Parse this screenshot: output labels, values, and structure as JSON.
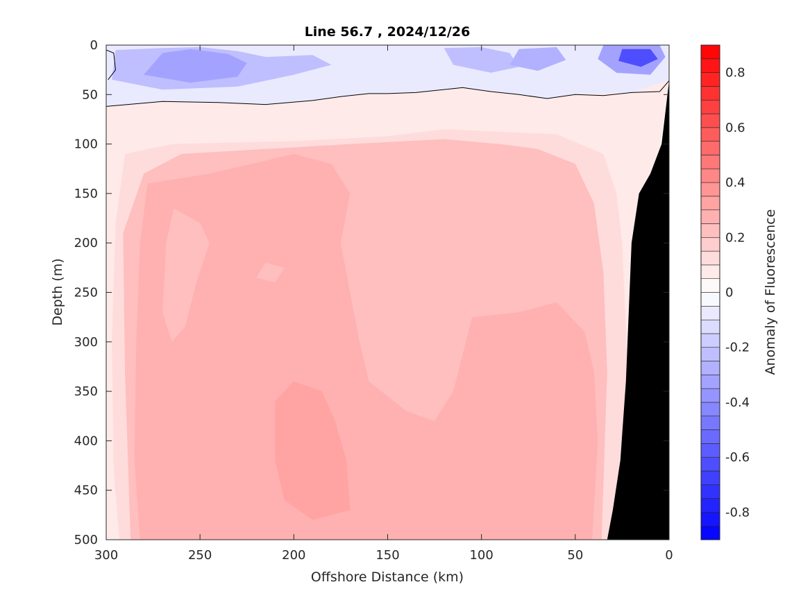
{
  "chart_data": {
    "type": "heatmap",
    "title": "Line 56.7 , 2024/12/26",
    "xlabel": "Offshore Distance (km)",
    "ylabel": "Depth (m)",
    "colorbar_label": "Anomaly of Fluorescence",
    "xlim": [
      300,
      0
    ],
    "ylim": [
      0,
      500
    ],
    "x_reversed": true,
    "y_reversed": true,
    "x_ticks": [
      300,
      250,
      200,
      150,
      100,
      50,
      0
    ],
    "y_ticks": [
      0,
      50,
      100,
      150,
      200,
      250,
      300,
      350,
      400,
      450,
      500
    ],
    "clim": [
      -0.9,
      0.9
    ],
    "colorbar_ticks": [
      0.8,
      0.6,
      0.4,
      0.2,
      0,
      -0.2,
      -0.4,
      -0.6,
      -0.8
    ],
    "colorbar_tick_labels": [
      "0.8",
      "0.6",
      "0.4",
      "0.2",
      "0",
      "-0.2",
      "-0.4",
      "-0.6",
      "-0.8"
    ],
    "colorbar_levels": 36,
    "colormap": {
      "negative": "#0000ff",
      "zero": "#ffffff",
      "positive": "#ff0000"
    },
    "zero_contour": [
      [
        300,
        62
      ],
      [
        270,
        57
      ],
      [
        240,
        58
      ],
      [
        215,
        60
      ],
      [
        190,
        56
      ],
      [
        175,
        52
      ],
      [
        160,
        49
      ],
      [
        150,
        49
      ],
      [
        135,
        48
      ],
      [
        110,
        43
      ],
      [
        95,
        47
      ],
      [
        80,
        50
      ],
      [
        65,
        54
      ],
      [
        50,
        50
      ],
      [
        35,
        51
      ],
      [
        20,
        48
      ],
      [
        5,
        47
      ],
      [
        0,
        36
      ]
    ],
    "bathymetry": [
      [
        33,
        500
      ],
      [
        30,
        470
      ],
      [
        26,
        420
      ],
      [
        23,
        340
      ],
      [
        20,
        200
      ],
      [
        16,
        150
      ],
      [
        10,
        130
      ],
      [
        4,
        100
      ],
      [
        0,
        36
      ]
    ],
    "bathymetry_color": "#000000",
    "regions": [
      {
        "value": 0.06,
        "polygon": [
          [
            300,
            62
          ],
          [
            270,
            57
          ],
          [
            240,
            58
          ],
          [
            215,
            60
          ],
          [
            190,
            56
          ],
          [
            160,
            49
          ],
          [
            135,
            48
          ],
          [
            110,
            43
          ],
          [
            80,
            50
          ],
          [
            65,
            54
          ],
          [
            50,
            50
          ],
          [
            20,
            48
          ],
          [
            0,
            36
          ],
          [
            33,
            500
          ],
          [
            300,
            500
          ]
        ]
      },
      {
        "value": 0.13,
        "polygon": [
          [
            293,
            500
          ],
          [
            296,
            430
          ],
          [
            297,
            300
          ],
          [
            295,
            180
          ],
          [
            290,
            110
          ],
          [
            265,
            100
          ],
          [
            200,
            97
          ],
          [
            150,
            92
          ],
          [
            120,
            85
          ],
          [
            85,
            88
          ],
          [
            60,
            90
          ],
          [
            35,
            110
          ],
          [
            28,
            150
          ],
          [
            25,
            200
          ],
          [
            22,
            330
          ],
          [
            30,
            500
          ]
        ]
      },
      {
        "value": 0.2,
        "polygon": [
          [
            287,
            500
          ],
          [
            290,
            330
          ],
          [
            291,
            190
          ],
          [
            280,
            130
          ],
          [
            260,
            110
          ],
          [
            215,
            105
          ],
          [
            170,
            100
          ],
          [
            120,
            95
          ],
          [
            90,
            100
          ],
          [
            70,
            105
          ],
          [
            50,
            120
          ],
          [
            40,
            160
          ],
          [
            35,
            230
          ],
          [
            33,
            330
          ],
          [
            36,
            500
          ]
        ]
      },
      {
        "value": 0.26,
        "polygon": [
          [
            282,
            500
          ],
          [
            285,
            420
          ],
          [
            284,
            300
          ],
          [
            282,
            200
          ],
          [
            278,
            140
          ],
          [
            245,
            130
          ],
          [
            200,
            110
          ],
          [
            180,
            120
          ],
          [
            170,
            150
          ],
          [
            175,
            200
          ],
          [
            170,
            250
          ],
          [
            165,
            300
          ],
          [
            160,
            340
          ],
          [
            140,
            370
          ],
          [
            125,
            380
          ],
          [
            115,
            350
          ],
          [
            105,
            275
          ],
          [
            80,
            270
          ],
          [
            60,
            260
          ],
          [
            45,
            290
          ],
          [
            40,
            330
          ],
          [
            38,
            400
          ],
          [
            41,
            500
          ]
        ]
      },
      {
        "value": 0.2,
        "polygon": [
          [
            270,
            270
          ],
          [
            265,
            300
          ],
          [
            258,
            285
          ],
          [
            252,
            240
          ],
          [
            245,
            200
          ],
          [
            250,
            180
          ],
          [
            264,
            165
          ],
          [
            268,
            200
          ]
        ]
      },
      {
        "value": 0.2,
        "polygon": [
          [
            215,
            220
          ],
          [
            205,
            225
          ],
          [
            210,
            240
          ],
          [
            220,
            235
          ]
        ]
      },
      {
        "value": 0.32,
        "polygon": [
          [
            200,
            340
          ],
          [
            210,
            360
          ],
          [
            210,
            420
          ],
          [
            205,
            460
          ],
          [
            190,
            480
          ],
          [
            170,
            470
          ],
          [
            172,
            420
          ],
          [
            178,
            380
          ],
          [
            185,
            350
          ]
        ]
      },
      {
        "value": -0.08,
        "polygon": [
          [
            300,
            0
          ],
          [
            0,
            0
          ],
          [
            0,
            36
          ],
          [
            20,
            48
          ],
          [
            50,
            50
          ],
          [
            65,
            54
          ],
          [
            80,
            50
          ],
          [
            110,
            43
          ],
          [
            135,
            48
          ],
          [
            160,
            49
          ],
          [
            190,
            56
          ],
          [
            215,
            60
          ],
          [
            240,
            58
          ],
          [
            270,
            57
          ],
          [
            300,
            62
          ]
        ]
      },
      {
        "value": -0.2,
        "polygon": [
          [
            295,
            5
          ],
          [
            270,
            3
          ],
          [
            250,
            2
          ],
          [
            230,
            6
          ],
          [
            215,
            12
          ],
          [
            190,
            10
          ],
          [
            180,
            20
          ],
          [
            200,
            30
          ],
          [
            230,
            42
          ],
          [
            270,
            45
          ],
          [
            297,
            35
          ]
        ]
      },
      {
        "value": -0.35,
        "polygon": [
          [
            270,
            8
          ],
          [
            255,
            4
          ],
          [
            235,
            9
          ],
          [
            225,
            18
          ],
          [
            230,
            32
          ],
          [
            255,
            38
          ],
          [
            280,
            30
          ]
        ]
      },
      {
        "value": -0.25,
        "polygon": [
          [
            120,
            3
          ],
          [
            100,
            2
          ],
          [
            85,
            8
          ],
          [
            80,
            22
          ],
          [
            95,
            28
          ],
          [
            115,
            20
          ]
        ]
      },
      {
        "value": -0.3,
        "polygon": [
          [
            80,
            4
          ],
          [
            60,
            2
          ],
          [
            55,
            15
          ],
          [
            70,
            26
          ],
          [
            85,
            20
          ]
        ]
      },
      {
        "value": -0.35,
        "polygon": [
          [
            35,
            0
          ],
          [
            5,
            0
          ],
          [
            2,
            12
          ],
          [
            10,
            30
          ],
          [
            28,
            28
          ],
          [
            38,
            14
          ]
        ]
      },
      {
        "value": -0.65,
        "polygon": [
          [
            25,
            4
          ],
          [
            10,
            4
          ],
          [
            6,
            14
          ],
          [
            15,
            22
          ],
          [
            27,
            16
          ]
        ]
      }
    ]
  }
}
